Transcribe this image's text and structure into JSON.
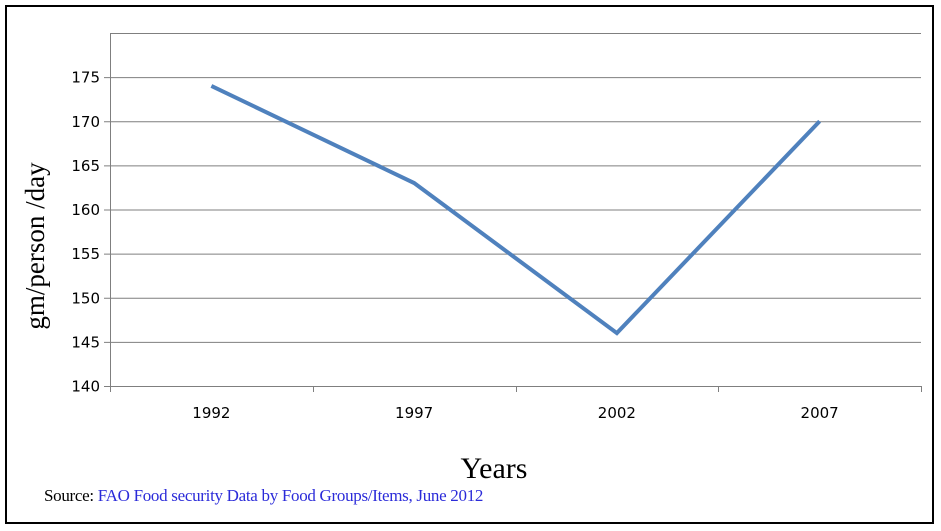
{
  "chart_data": {
    "type": "line",
    "categories": [
      "1992",
      "1997",
      "2002",
      "2007"
    ],
    "series": [
      {
        "values": [
          174,
          163,
          146,
          170
        ]
      }
    ],
    "title": "",
    "xlabel": "Years",
    "ylabel": "gm/person /day",
    "ylim": [
      140,
      180
    ],
    "yticks": [
      140,
      145,
      150,
      155,
      160,
      165,
      170,
      175
    ],
    "grid": true,
    "legend": "none",
    "line_color": "#4f81bd"
  },
  "source": {
    "prefix": "Source: ",
    "text": "FAO Food security Data by Food Groups/Items, June 2012"
  }
}
